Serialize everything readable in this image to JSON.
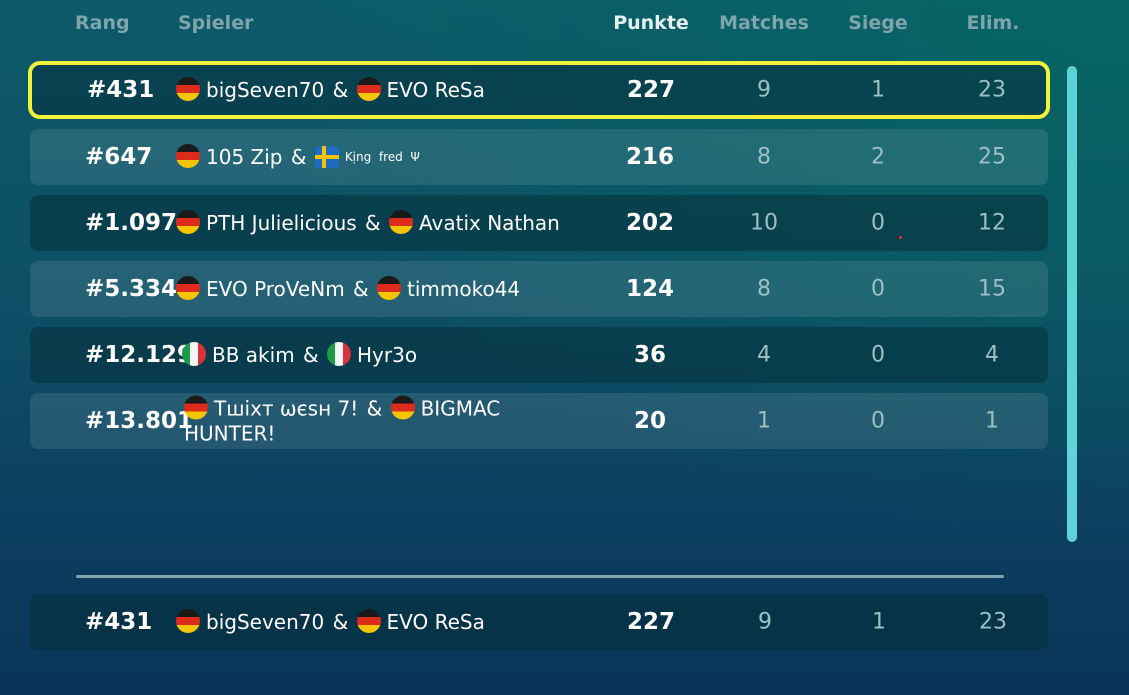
{
  "header": {
    "rank": "Rang",
    "player": "Spieler",
    "points": "Punkte",
    "matches": "Matches",
    "wins": "Siege",
    "elims": "Elim."
  },
  "rows": [
    {
      "rank": "#431",
      "p1_flag": "de",
      "p1": "bigSeven70",
      "p2_flag": "de",
      "p2": "EVO ReSa",
      "points": "227",
      "matches": "9",
      "wins": "1",
      "elims": "23"
    },
    {
      "rank": "#647",
      "p1_flag": "de",
      "p1": "105 Zip",
      "p2_flag": "se",
      "p2": "Kịng ‍ fred ‍ Ψ",
      "points": "216",
      "matches": "8",
      "wins": "2",
      "elims": "25"
    },
    {
      "rank": "#1.097",
      "p1_flag": "de",
      "p1": "PTH Julielicious",
      "p2_flag": "de",
      "p2": "Avatix Nathan",
      "points": "202",
      "matches": "10",
      "wins": "0",
      "elims": "12"
    },
    {
      "rank": "#5.334",
      "p1_flag": "de",
      "p1": "EVO ProVeNm",
      "p2_flag": "de",
      "p2": "timmoko44",
      "points": "124",
      "matches": "8",
      "wins": "0",
      "elims": "15"
    },
    {
      "rank": "#12.129",
      "p1_flag": "it",
      "p1": "BB akim",
      "p2_flag": "it",
      "p2": "Hyr3o",
      "points": "36",
      "matches": "4",
      "wins": "0",
      "elims": "4"
    },
    {
      "rank": "#13.801",
      "p1_flag": "de",
      "p1": "Тшіхт ωєѕн 7!",
      "p2_flag": "de",
      "p2": "BIGMAC HUNTER!",
      "points": "20",
      "matches": "1",
      "wins": "0",
      "elims": "1"
    }
  ],
  "my_team": {
    "rank": "#431",
    "p1_flag": "de",
    "p1": "bigSeven70",
    "p2_flag": "de",
    "p2": "EVO ReSa",
    "points": "227",
    "matches": "9",
    "wins": "1",
    "elims": "23"
  },
  "amp": "&",
  "colors": {
    "highlight_border": "#f3f23a",
    "scrollbar": "#5fd2d6",
    "header_text": "#7ea5ac"
  }
}
